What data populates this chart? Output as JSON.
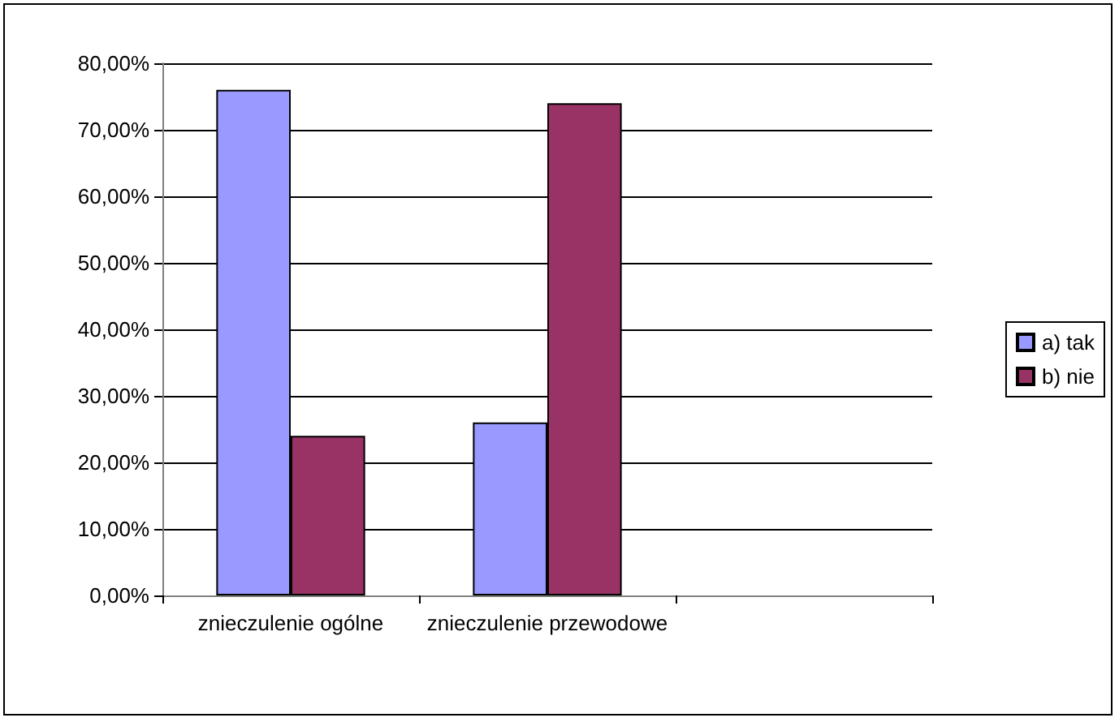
{
  "chart_data": {
    "type": "bar",
    "categories": [
      "znieczulenie ogólne",
      "znieczulenie przewodowe",
      null
    ],
    "series": [
      {
        "name": "a) tak",
        "color": "#9999ff",
        "values": [
          76,
          26,
          null
        ]
      },
      {
        "name": "b) nie",
        "color": "#993366",
        "values": [
          24,
          74,
          null
        ]
      }
    ],
    "ylim": [
      0,
      80
    ],
    "yticks": [
      {
        "value": 0,
        "label": "0,00%"
      },
      {
        "value": 10,
        "label": "10,00%"
      },
      {
        "value": 20,
        "label": "20,00%"
      },
      {
        "value": 30,
        "label": "30,00%"
      },
      {
        "value": 40,
        "label": "40,00%"
      },
      {
        "value": 50,
        "label": "50,00%"
      },
      {
        "value": 60,
        "label": "60,00%"
      },
      {
        "value": 70,
        "label": "70,00%"
      },
      {
        "value": 80,
        "label": "80,00%"
      }
    ],
    "grid": "y",
    "legend": "right"
  }
}
